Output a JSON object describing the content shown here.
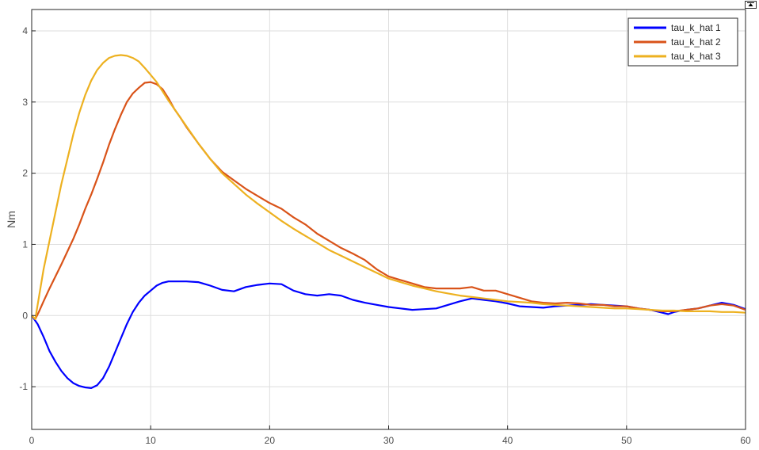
{
  "chart_data": {
    "type": "line",
    "title": "",
    "xlabel": "",
    "ylabel": "Nm",
    "xlim": [
      0,
      60
    ],
    "ylim": [
      -1.6,
      4.3
    ],
    "grid": true,
    "legend_position": "top-right",
    "x_ticks": [
      0,
      10,
      20,
      30,
      40,
      50,
      60
    ],
    "y_ticks": [
      -1,
      0,
      1,
      2,
      3,
      4
    ],
    "x_tick_labels": [
      "0",
      "10",
      "20",
      "30",
      "40",
      "50",
      "60"
    ],
    "y_tick_labels": [
      "-1",
      "0",
      "1",
      "2",
      "3",
      "4"
    ],
    "series": [
      {
        "name": "tau_k_hat 1",
        "color": "#0000ff",
        "x": [
          0,
          0.5,
          1,
          1.5,
          2,
          2.5,
          3,
          3.5,
          4,
          4.5,
          5,
          5.5,
          6,
          6.5,
          7,
          7.5,
          8,
          8.5,
          9,
          9.5,
          10,
          10.5,
          11,
          11.5,
          12,
          13,
          14,
          15,
          16,
          17,
          18,
          19,
          20,
          21,
          22,
          23,
          24,
          25,
          26,
          27,
          28,
          29,
          30,
          31,
          32,
          33,
          34,
          35,
          36,
          37,
          38,
          39,
          40,
          41,
          42,
          43,
          44,
          45,
          46,
          47,
          48,
          49,
          50,
          51,
          52,
          53,
          53.5,
          54,
          55,
          56,
          57,
          58,
          59,
          60
        ],
        "values": [
          0,
          -0.12,
          -0.3,
          -0.5,
          -0.65,
          -0.78,
          -0.88,
          -0.95,
          -0.99,
          -1.01,
          -1.02,
          -0.98,
          -0.88,
          -0.72,
          -0.52,
          -0.32,
          -0.12,
          0.05,
          0.18,
          0.28,
          0.35,
          0.42,
          0.46,
          0.48,
          0.48,
          0.48,
          0.47,
          0.42,
          0.36,
          0.34,
          0.4,
          0.43,
          0.45,
          0.44,
          0.35,
          0.3,
          0.28,
          0.3,
          0.28,
          0.22,
          0.18,
          0.15,
          0.12,
          0.1,
          0.08,
          0.09,
          0.1,
          0.15,
          0.2,
          0.24,
          0.22,
          0.2,
          0.17,
          0.13,
          0.12,
          0.11,
          0.13,
          0.14,
          0.15,
          0.16,
          0.15,
          0.14,
          0.13,
          0.1,
          0.08,
          0.04,
          0.02,
          0.05,
          0.08,
          0.1,
          0.14,
          0.18,
          0.15,
          0.09
        ]
      },
      {
        "name": "tau_k_hat 2",
        "color": "#d95319",
        "x": [
          0,
          0.3,
          0.6,
          1,
          1.5,
          2,
          2.5,
          3,
          3.5,
          4,
          4.5,
          5,
          5.5,
          6,
          6.5,
          7,
          7.5,
          8,
          8.5,
          9,
          9.5,
          10,
          10.5,
          11,
          11.5,
          12,
          12.5,
          13,
          14,
          15,
          16,
          17,
          18,
          19,
          20,
          21,
          22,
          23,
          24,
          25,
          26,
          27,
          28,
          29,
          30,
          31,
          32,
          33,
          34,
          35,
          36,
          37,
          38,
          39,
          40,
          41,
          42,
          43,
          44,
          45,
          46,
          47,
          48,
          49,
          50,
          51,
          52,
          53,
          54,
          55,
          56,
          57,
          58,
          59,
          60
        ],
        "values": [
          0,
          -0.05,
          0.05,
          0.2,
          0.38,
          0.55,
          0.72,
          0.9,
          1.08,
          1.28,
          1.5,
          1.7,
          1.92,
          2.15,
          2.4,
          2.62,
          2.82,
          3.0,
          3.12,
          3.2,
          3.27,
          3.28,
          3.25,
          3.18,
          3.05,
          2.9,
          2.78,
          2.65,
          2.42,
          2.2,
          2.02,
          1.9,
          1.78,
          1.68,
          1.58,
          1.5,
          1.38,
          1.28,
          1.15,
          1.05,
          0.95,
          0.87,
          0.78,
          0.65,
          0.55,
          0.5,
          0.45,
          0.4,
          0.38,
          0.38,
          0.38,
          0.4,
          0.35,
          0.35,
          0.3,
          0.25,
          0.2,
          0.18,
          0.17,
          0.18,
          0.17,
          0.15,
          0.15,
          0.13,
          0.13,
          0.1,
          0.08,
          0.06,
          0.06,
          0.08,
          0.1,
          0.14,
          0.16,
          0.14,
          0.08
        ]
      },
      {
        "name": "tau_k_hat 3",
        "color": "#edb120",
        "x": [
          0,
          0.3,
          0.6,
          1,
          1.5,
          2,
          2.5,
          3,
          3.5,
          4,
          4.5,
          5,
          5.5,
          6,
          6.5,
          7,
          7.5,
          8,
          8.5,
          9,
          9.5,
          10,
          10.5,
          11,
          11.5,
          12,
          12.5,
          13,
          14,
          15,
          16,
          17,
          18,
          19,
          20,
          21,
          22,
          23,
          24,
          25,
          26,
          27,
          28,
          29,
          30,
          31,
          32,
          33,
          34,
          35,
          36,
          37,
          38,
          39,
          40,
          41,
          42,
          43,
          44,
          45,
          46,
          47,
          48,
          49,
          50,
          51,
          52,
          53,
          54,
          55,
          56,
          57,
          58,
          59,
          60
        ],
        "values": [
          0,
          -0.05,
          0.25,
          0.65,
          1.05,
          1.45,
          1.85,
          2.2,
          2.55,
          2.85,
          3.1,
          3.3,
          3.45,
          3.55,
          3.62,
          3.65,
          3.66,
          3.65,
          3.62,
          3.57,
          3.48,
          3.38,
          3.28,
          3.15,
          3.02,
          2.9,
          2.78,
          2.66,
          2.42,
          2.2,
          2.0,
          1.85,
          1.7,
          1.57,
          1.45,
          1.33,
          1.22,
          1.12,
          1.02,
          0.92,
          0.84,
          0.76,
          0.68,
          0.6,
          0.52,
          0.47,
          0.42,
          0.38,
          0.34,
          0.31,
          0.28,
          0.26,
          0.24,
          0.22,
          0.2,
          0.19,
          0.18,
          0.16,
          0.15,
          0.14,
          0.13,
          0.12,
          0.11,
          0.1,
          0.1,
          0.09,
          0.08,
          0.07,
          0.07,
          0.06,
          0.06,
          0.06,
          0.05,
          0.05,
          0.04
        ]
      }
    ]
  }
}
